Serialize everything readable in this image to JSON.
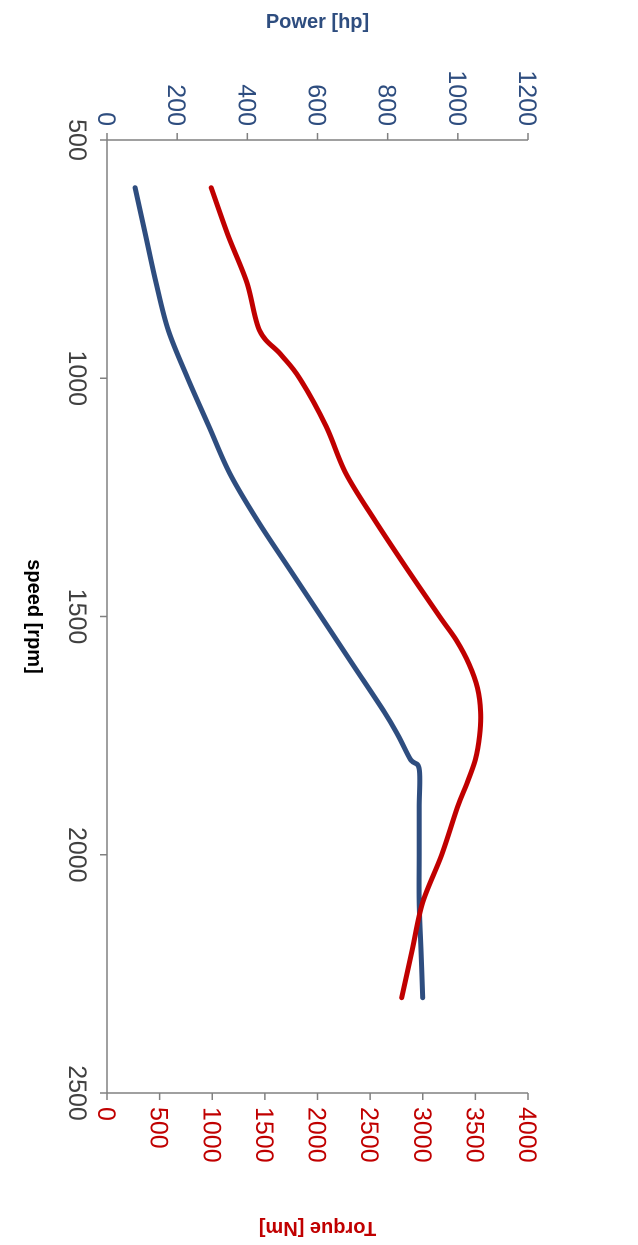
{
  "chart_data": {
    "type": "line",
    "title": "",
    "xlabel": "speed [rpm]",
    "ylabel_left": "Power [hp]",
    "ylabel_right": "Torque [Nm]",
    "xlim": [
      500,
      2500
    ],
    "ylim_left": [
      0,
      1200
    ],
    "ylim_right": [
      0,
      4000
    ],
    "x_ticks": [
      500,
      1000,
      1500,
      2000,
      2500
    ],
    "y_left_ticks": [
      0,
      200,
      400,
      600,
      800,
      1000,
      1200
    ],
    "y_right_ticks": [
      0,
      500,
      1000,
      1500,
      2000,
      2500,
      3000,
      3500,
      4000
    ],
    "grid": false,
    "series": [
      {
        "axis": "left",
        "color": "#2E4D7F",
        "x": [
          600,
          700,
          800,
          900,
          1000,
          1100,
          1200,
          1300,
          1400,
          1500,
          1600,
          1700,
          1750,
          1800,
          1820,
          1900,
          2000,
          2100,
          2200,
          2300
        ],
        "y": [
          80,
          110,
          140,
          175,
          230,
          290,
          350,
          430,
          520,
          610,
          700,
          790,
          830,
          865,
          890,
          890,
          890,
          890,
          895,
          900
        ]
      },
      {
        "axis": "right",
        "color": "#C00000",
        "x": [
          600,
          700,
          800,
          900,
          950,
          1000,
          1100,
          1200,
          1300,
          1400,
          1500,
          1550,
          1600,
          1650,
          1700,
          1750,
          1800,
          1850,
          1900,
          2000,
          2100,
          2200,
          2300
        ],
        "y": [
          990,
          1150,
          1330,
          1450,
          1650,
          1830,
          2080,
          2270,
          2550,
          2850,
          3160,
          3320,
          3440,
          3520,
          3550,
          3540,
          3500,
          3420,
          3330,
          3180,
          3000,
          2900,
          2800
        ]
      }
    ]
  },
  "colors": {
    "power": "#2E4D7F",
    "torque": "#C00000",
    "axis": "#808080"
  }
}
